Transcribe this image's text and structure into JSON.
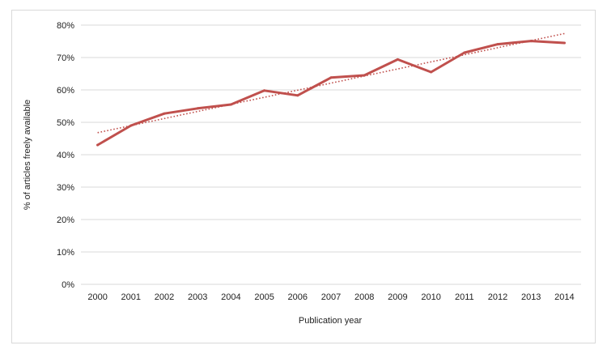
{
  "chart_data": {
    "type": "line",
    "title": "",
    "xlabel": "Publication year",
    "ylabel": "% of articles freely available",
    "x": [
      "2000",
      "2001",
      "2002",
      "2003",
      "2004",
      "2005",
      "2006",
      "2007",
      "2008",
      "2009",
      "2010",
      "2011",
      "2012",
      "2013",
      "2014"
    ],
    "series": [
      {
        "values": [
          43,
          49,
          52.7,
          54.3,
          55.5,
          59.8,
          58.3,
          63.8,
          64.5,
          69.4,
          65.5,
          71.5,
          74.1,
          75.1,
          74.5
        ],
        "color": "#c0504d"
      }
    ],
    "trendline": {
      "type": "linear",
      "start": 46.8,
      "end": 77.4,
      "color": "#c0504d",
      "style": "dotted"
    },
    "yticks": [
      "0%",
      "10%",
      "20%",
      "30%",
      "40%",
      "50%",
      "60%",
      "70%",
      "80%"
    ],
    "ylim": [
      0,
      80
    ],
    "grid": true,
    "legend": "none"
  }
}
